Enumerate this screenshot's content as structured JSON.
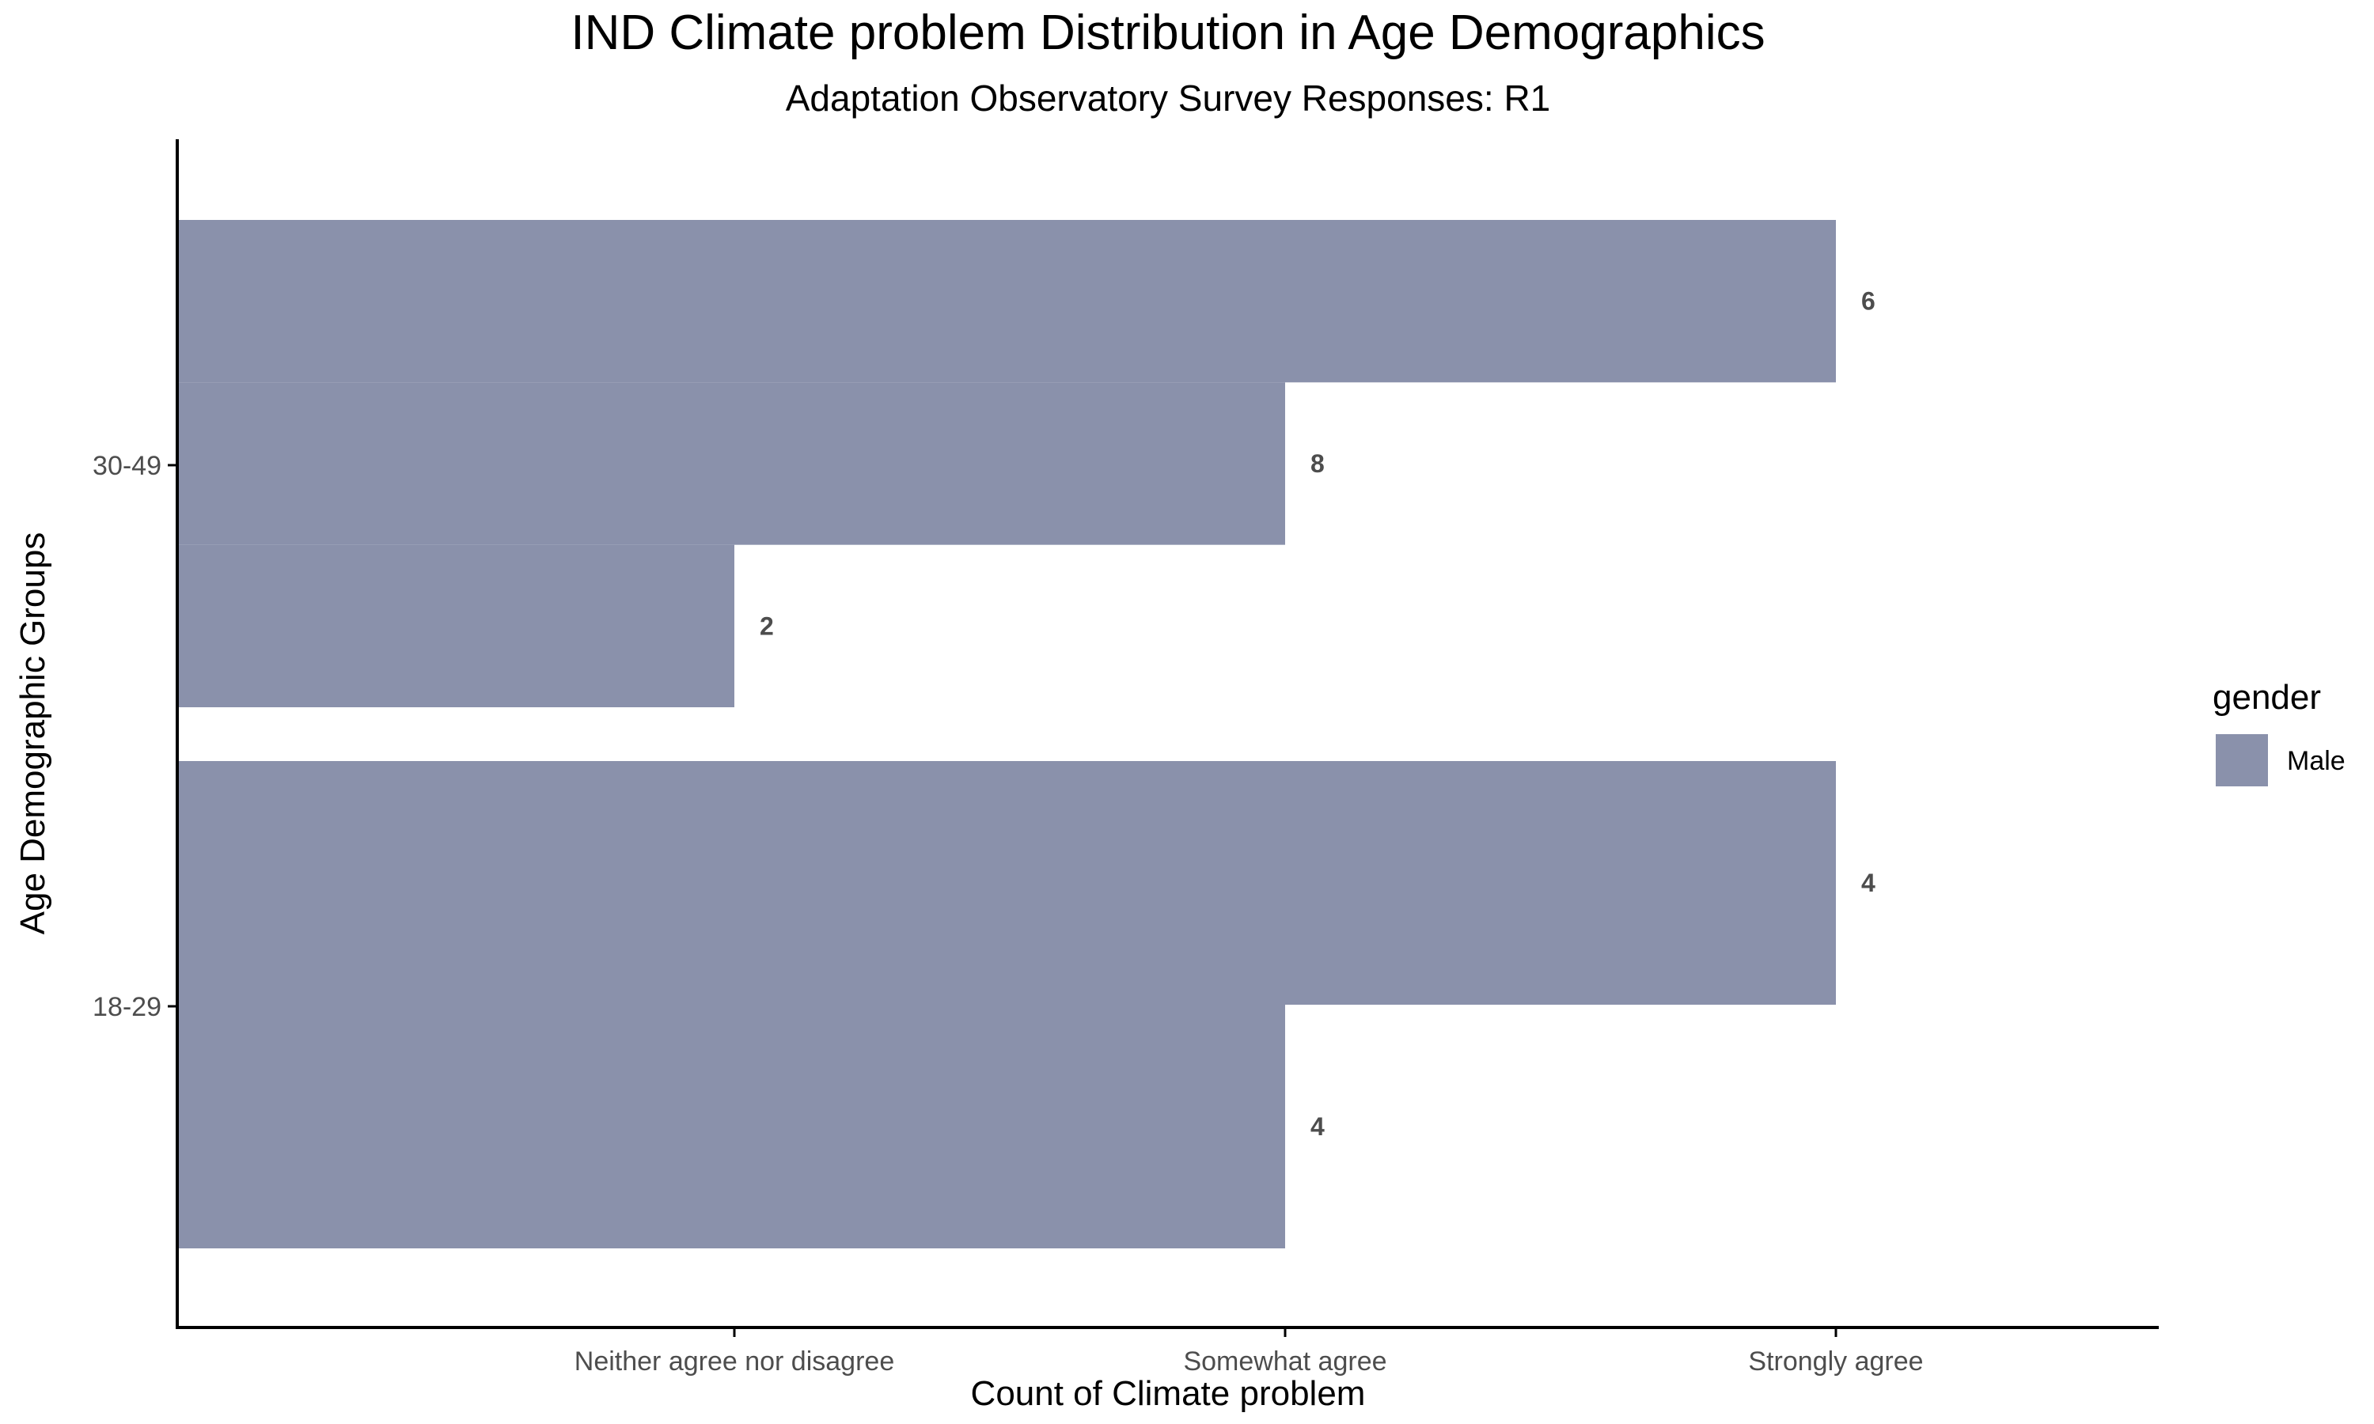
{
  "chart_data": {
    "type": "bar",
    "orientation": "horizontal",
    "title": "IND Climate problem Distribution in Age Demographics",
    "subtitle": "Adaptation Observatory Survey Responses: R1",
    "xlabel": "Count of Climate problem",
    "ylabel": "Age Demographic Groups",
    "x_categories": [
      "Neither agree nor disagree",
      "Somewhat agree",
      "Strongly agree"
    ],
    "y_categories": [
      "18-29",
      "30-49"
    ],
    "legend": {
      "title": "gender",
      "position": "right",
      "entries": [
        {
          "name": "Male",
          "color": "#8a91ab"
        }
      ]
    },
    "bar_color": "#8a91ab",
    "groups": [
      {
        "age": "30-49",
        "bars": [
          {
            "response": "Strongly agree",
            "count": 6
          },
          {
            "response": "Somewhat agree",
            "count": 8
          },
          {
            "response": "Neither agree nor disagree",
            "count": 2
          }
        ]
      },
      {
        "age": "18-29",
        "bars": [
          {
            "response": "Strongly agree",
            "count": 4
          },
          {
            "response": "Somewhat agree",
            "count": 4
          }
        ]
      }
    ],
    "grid": false
  }
}
